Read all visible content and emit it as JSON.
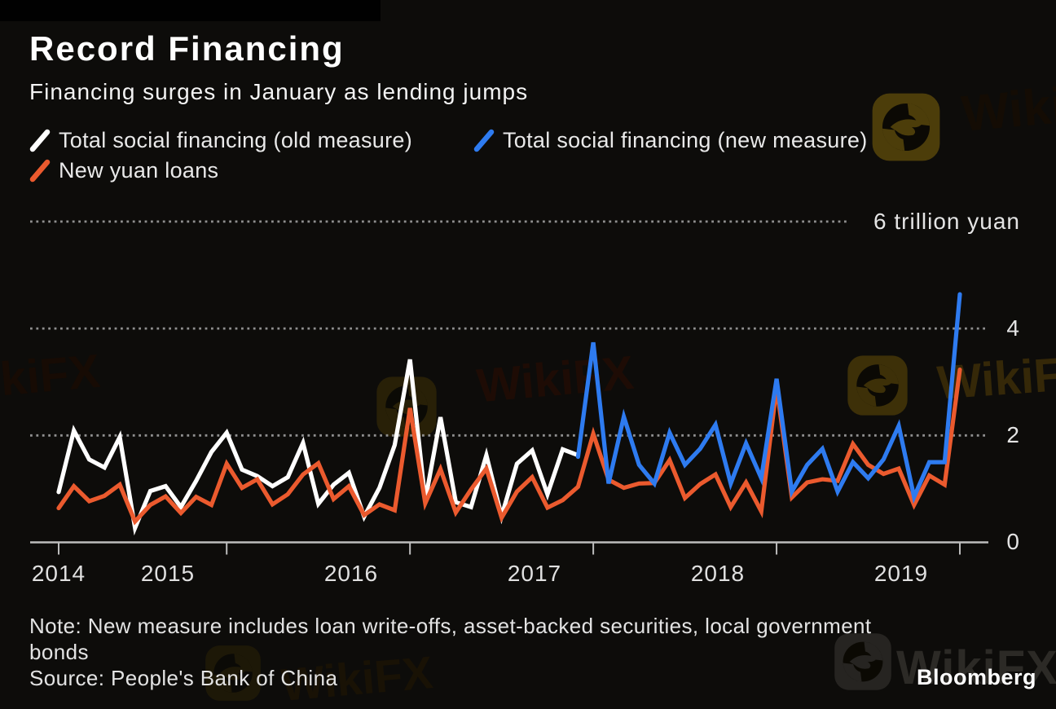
{
  "header": {
    "title": "Record Financing",
    "subtitle": "Financing surges in January as lending jumps"
  },
  "legend": [
    {
      "label": "Total social financing (old measure)",
      "color": "#ffffff"
    },
    {
      "label": "Total social financing (new measure)",
      "color": "#2e7bf0"
    },
    {
      "label": "New yuan loans",
      "color": "#eb5a2e"
    }
  ],
  "chart_data": {
    "type": "line",
    "title": "Record Financing",
    "subtitle": "Financing surges in January as lending jumps",
    "unit": "trillion yuan",
    "frequency": "monthly",
    "x_range": [
      "2014-02",
      "2019-01"
    ],
    "x_tick_labels": [
      "2014",
      "2015",
      "2016",
      "2017",
      "2018",
      "2019"
    ],
    "x_tick_indices": [
      0,
      11,
      23,
      35,
      47,
      59
    ],
    "y_ticks": [
      0,
      2,
      4,
      6
    ],
    "y_tick_labels": [
      "0",
      "2",
      "4",
      "6 trillion yuan"
    ],
    "ylim": [
      0,
      6.6
    ],
    "grid": "dotted-horizontal",
    "legend_position": "top-left",
    "series": [
      {
        "name": "Total social financing (old measure)",
        "color": "#ffffff",
        "start_index": 0,
        "values": [
          0.94,
          2.09,
          1.55,
          1.4,
          1.97,
          0.27,
          0.96,
          1.05,
          0.66,
          1.15,
          1.69,
          2.05,
          1.36,
          1.24,
          1.05,
          1.22,
          1.86,
          0.72,
          1.08,
          1.3,
          0.48,
          1.02,
          1.82,
          3.42,
          0.78,
          2.34,
          0.75,
          0.66,
          1.63,
          0.49,
          1.47,
          1.72,
          0.9,
          1.74,
          1.63
        ]
      },
      {
        "name": "Total social financing (new measure)",
        "color": "#2e7bf0",
        "start_index": 34,
        "values": [
          1.6,
          3.74,
          1.1,
          2.35,
          1.45,
          1.1,
          2.05,
          1.45,
          1.75,
          2.2,
          1.1,
          1.85,
          1.2,
          3.06,
          0.95,
          1.45,
          1.75,
          0.95,
          1.5,
          1.2,
          1.55,
          2.18,
          0.85,
          1.5,
          1.5,
          4.64
        ]
      },
      {
        "name": "New yuan loans",
        "color": "#eb5a2e",
        "start_index": 0,
        "values": [
          0.64,
          1.05,
          0.77,
          0.87,
          1.08,
          0.39,
          0.7,
          0.86,
          0.55,
          0.85,
          0.7,
          1.47,
          1.02,
          1.18,
          0.71,
          0.9,
          1.27,
          1.48,
          0.81,
          1.05,
          0.51,
          0.71,
          0.6,
          2.51,
          0.73,
          1.37,
          0.56,
          0.99,
          1.38,
          0.46,
          0.95,
          1.22,
          0.65,
          0.79,
          1.04,
          2.03,
          1.17,
          1.02,
          1.1,
          1.11,
          1.54,
          0.83,
          1.09,
          1.27,
          0.66,
          1.12,
          0.58,
          2.9,
          0.84,
          1.12,
          1.18,
          1.15,
          1.84,
          1.45,
          1.28,
          1.38,
          0.7,
          1.25,
          1.08,
          3.23
        ]
      }
    ]
  },
  "footer": {
    "note": "Note: New measure includes loan write-offs, asset-backed securities, local government bonds",
    "source": "Source: People's Bank of China",
    "credit": "Bloomberg"
  },
  "watermark": {
    "text": "WikiFX"
  }
}
